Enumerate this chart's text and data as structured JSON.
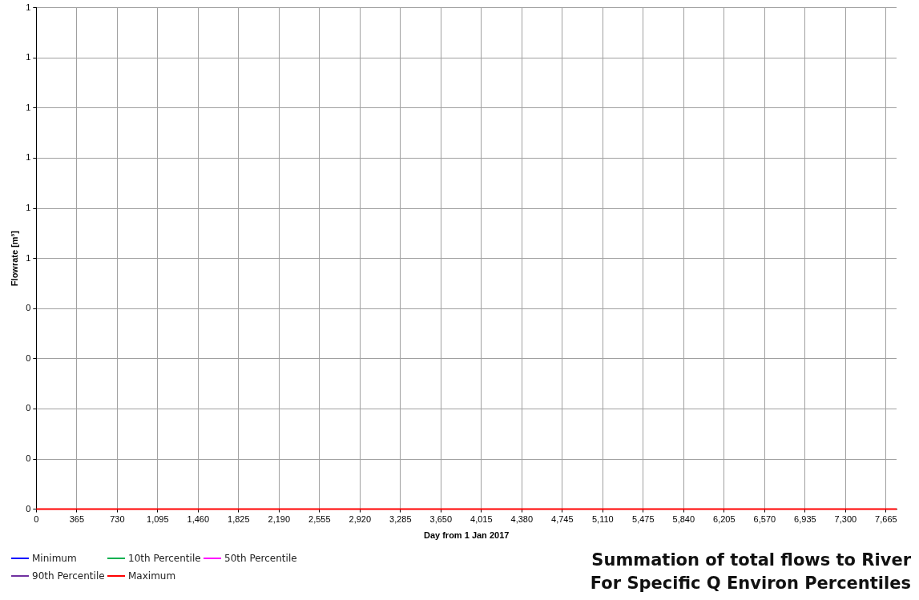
{
  "chart_data": {
    "type": "line",
    "title": "Summation of total flows to River",
    "subtitle": "For Specific Q Environ Percentiles",
    "xlabel": "Day from 1 Jan 2017",
    "ylabel": "Flowrate [m³]",
    "x": [
      0,
      7760
    ],
    "series": [
      {
        "name": "Minimum",
        "color": "#0000ff",
        "values": [
          null,
          null
        ]
      },
      {
        "name": "10th Percentile",
        "color": "#00b050",
        "values": [
          null,
          null
        ]
      },
      {
        "name": "50th Percentile",
        "color": "#ff00ff",
        "values": [
          null,
          null
        ]
      },
      {
        "name": "90th Percentile",
        "color": "#7030a0",
        "values": [
          null,
          null
        ]
      },
      {
        "name": "Maximum",
        "color": "#ff0000",
        "values": [
          0,
          0
        ]
      }
    ],
    "xlim": [
      0,
      7760
    ],
    "xticks": [
      0,
      365,
      730,
      {
        "value": 1095,
        "label": "1,095"
      },
      {
        "value": 1460,
        "label": "1,460"
      },
      {
        "value": 1825,
        "label": "1,825"
      },
      {
        "value": 2190,
        "label": "2,190"
      },
      {
        "value": 2555,
        "label": "2,555"
      },
      {
        "value": 2920,
        "label": "2,920"
      },
      {
        "value": 3285,
        "label": "3,285"
      },
      {
        "value": 3650,
        "label": "3,650"
      },
      {
        "value": 4015,
        "label": "4,015"
      },
      {
        "value": 4380,
        "label": "4,380"
      },
      {
        "value": 4745,
        "label": "4,745"
      },
      {
        "value": 5110,
        "label": "5,110"
      },
      {
        "value": 5475,
        "label": "5,475"
      },
      {
        "value": 5840,
        "label": "5,840"
      },
      {
        "value": 6205,
        "label": "6,205"
      },
      {
        "value": 6570,
        "label": "6,570"
      },
      {
        "value": 6935,
        "label": "6,935"
      },
      {
        "value": 7300,
        "label": "7,300"
      },
      {
        "value": 7665,
        "label": "7,665"
      }
    ],
    "ylim": [
      0,
      1
    ],
    "yticks": [
      0,
      {
        "value": 0.1,
        "label": "0"
      },
      {
        "value": 0.2,
        "label": "0"
      },
      {
        "value": 0.3,
        "label": "0"
      },
      {
        "value": 0.4,
        "label": "0"
      },
      {
        "value": 0.5,
        "label": "1"
      },
      {
        "value": 0.6,
        "label": "1"
      },
      {
        "value": 0.7,
        "label": "1"
      },
      {
        "value": 0.8,
        "label": "1"
      },
      {
        "value": 0.9,
        "label": "1"
      },
      1
    ],
    "grid": true,
    "legend": "bottom left",
    "marker": "none",
    "line_style": "solid"
  }
}
